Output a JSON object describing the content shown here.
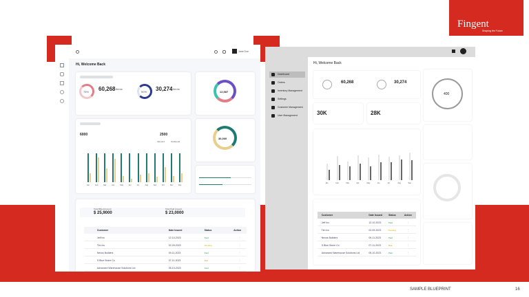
{
  "slide": {
    "footer": "SAMPLE BLUEPRINT",
    "page_number": "16",
    "brand": "Fingent",
    "brand_tagline": "Shaping the Future",
    "accent": "#d42a20"
  },
  "left": {
    "greeting": "Hi, Welcome Back",
    "user": "Jane Doe",
    "stat1": {
      "percent": "75%",
      "value": "60,268",
      "unit": "Items"
    },
    "stat2": {
      "percent": "50%",
      "value": "30,274",
      "unit": "Items"
    },
    "donut_total": "12,587",
    "inbound": "6000",
    "outbound": "2500",
    "gauge_value": "36,000",
    "legend": [
      "Inbound",
      "Outbound"
    ],
    "billed": {
      "label": "Total Billed Amount",
      "value": "$ 25,9000"
    },
    "paid": {
      "label": "Total Paid Amount",
      "value": "$ 23,0000"
    },
    "table": {
      "headers": [
        "Customer",
        "Date Issued",
        "Status",
        "Action"
      ],
      "rows": [
        [
          "Jeff Inc",
          "12-10-2023",
          "Paid"
        ],
        [
          "Tim Inc",
          "02-09-2023",
          "Pending"
        ],
        [
          "Nexus Builders",
          "09-11-2023",
          "Paid"
        ],
        [
          "S Blue Stone Co",
          "07-11-2023",
          "Due"
        ],
        [
          "Advanced Warehouse Solutions Ltd",
          "05-10-2023",
          "Paid"
        ]
      ]
    },
    "colors": {
      "teal": "#1f7a72",
      "yellow": "#e8cf8e",
      "pink": "#e47c86",
      "navy": "#2b3990"
    }
  },
  "right": {
    "greeting": "Hi, Welcome Back",
    "nav": [
      "Dashboard",
      "Orders",
      "Inventory Management",
      "Settings",
      "Customer Management",
      "User Management"
    ],
    "stat1": {
      "value": "60,268"
    },
    "stat2": {
      "value": "30,274"
    },
    "kpi1": "30K",
    "kpi2": "28K",
    "donut_total": "400"
  },
  "chart_data": [
    {
      "type": "bar",
      "categories": [
        "Jan",
        "Feb",
        "Mar",
        "Apr",
        "May",
        "Jun",
        "Jul",
        "Aug",
        "Sep",
        "Oct",
        "Nov",
        "Dec"
      ],
      "series": [
        {
          "name": "Inbound",
          "values": [
            80,
            80,
            80,
            80,
            80,
            80,
            80,
            80,
            80,
            80,
            80,
            80
          ]
        },
        {
          "name": "Outbound",
          "values": [
            25,
            70,
            38,
            65,
            18,
            10,
            22,
            25,
            15,
            42,
            18,
            25
          ]
        }
      ],
      "ylim": [
        0,
        100
      ]
    },
    {
      "type": "bar",
      "categories": [
        "Jan",
        "Feb",
        "Mar",
        "Apr",
        "May",
        "Jun",
        "Jul",
        "Aug",
        "Sep"
      ],
      "series": [
        {
          "values": [
            65,
            95,
            75,
            98,
            90,
            100,
            92,
            98,
            110
          ]
        },
        {
          "values": [
            40,
            60,
            55,
            65,
            55,
            72,
            72,
            82,
            80
          ]
        }
      ],
      "ylim": [
        0,
        120
      ]
    }
  ]
}
